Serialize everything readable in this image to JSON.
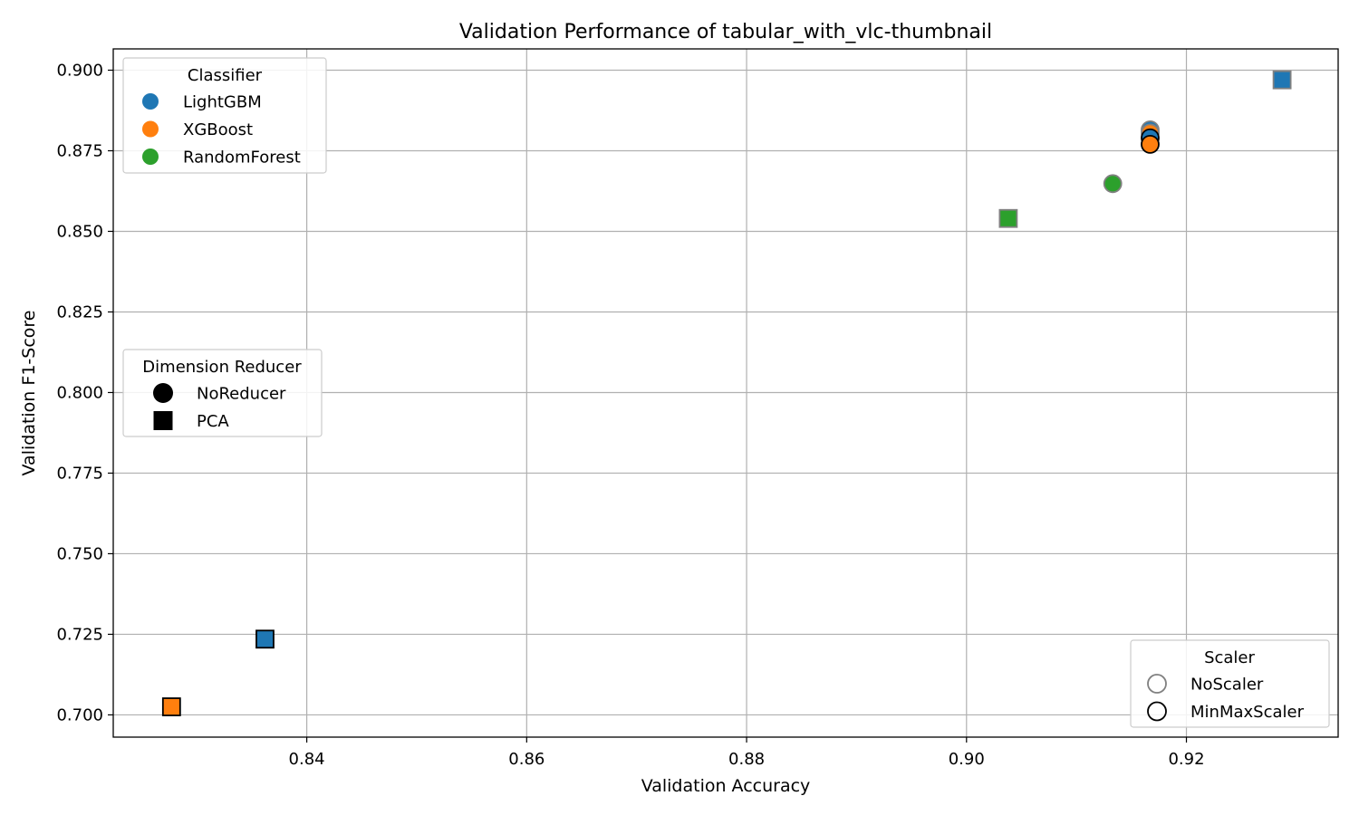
{
  "chart_data": {
    "type": "scatter",
    "title": "Validation Performance of tabular_with_vlc-thumbnail",
    "xlabel": "Validation Accuracy",
    "ylabel": "Validation F1-Score",
    "xlim": [
      0.8224,
      0.9338
    ],
    "ylim": [
      0.6931,
      0.9066
    ],
    "xticks": [
      0.84,
      0.86,
      0.88,
      0.9,
      0.92
    ],
    "xtick_labels": [
      "0.84",
      "0.86",
      "0.88",
      "0.90",
      "0.92"
    ],
    "yticks": [
      0.7,
      0.725,
      0.75,
      0.775,
      0.8,
      0.825,
      0.85,
      0.875,
      0.9
    ],
    "ytick_labels": [
      "0.700",
      "0.725",
      "0.750",
      "0.775",
      "0.800",
      "0.825",
      "0.850",
      "0.875",
      "0.900"
    ],
    "grid": true,
    "colors": {
      "LightGBM": "#1f77b4",
      "XGBoost": "#ff7f0e",
      "RandomForest": "#2ca02c"
    },
    "scaler_edge_colors": {
      "NoScaler": "#808080",
      "MinMaxScaler": "#000000"
    },
    "points": [
      {
        "x": 0.9287,
        "y": 0.897,
        "classifier": "LightGBM",
        "reducer": "PCA",
        "scaler": "NoScaler"
      },
      {
        "x": 0.9038,
        "y": 0.854,
        "classifier": "RandomForest",
        "reducer": "PCA",
        "scaler": "NoScaler"
      },
      {
        "x": 0.9133,
        "y": 0.8648,
        "classifier": "RandomForest",
        "reducer": "NoReducer",
        "scaler": "NoScaler"
      },
      {
        "x": 0.9167,
        "y": 0.8815,
        "classifier": "LightGBM",
        "reducer": "NoReducer",
        "scaler": "NoScaler"
      },
      {
        "x": 0.9167,
        "y": 0.8805,
        "classifier": "XGBoost",
        "reducer": "NoReducer",
        "scaler": "NoScaler"
      },
      {
        "x": 0.9167,
        "y": 0.879,
        "classifier": "LightGBM",
        "reducer": "NoReducer",
        "scaler": "MinMaxScaler"
      },
      {
        "x": 0.9167,
        "y": 0.877,
        "classifier": "XGBoost",
        "reducer": "NoReducer",
        "scaler": "MinMaxScaler"
      },
      {
        "x": 0.8362,
        "y": 0.7235,
        "classifier": "LightGBM",
        "reducer": "PCA",
        "scaler": "MinMaxScaler"
      },
      {
        "x": 0.8277,
        "y": 0.7025,
        "classifier": "XGBoost",
        "reducer": "PCA",
        "scaler": "MinMaxScaler"
      }
    ],
    "legends": [
      {
        "title": "Classifier",
        "placement": "top-left",
        "entries": [
          {
            "label": "LightGBM",
            "marker": "circle",
            "color": "#1f77b4"
          },
          {
            "label": "XGBoost",
            "marker": "circle",
            "color": "#ff7f0e"
          },
          {
            "label": "RandomForest",
            "marker": "circle",
            "color": "#2ca02c"
          }
        ]
      },
      {
        "title": "Dimension Reducer",
        "placement": "center-left",
        "entries": [
          {
            "label": "NoReducer",
            "marker": "circle",
            "color": "#000000"
          },
          {
            "label": "PCA",
            "marker": "square",
            "color": "#000000"
          }
        ]
      },
      {
        "title": "Scaler",
        "placement": "bottom-right",
        "entries": [
          {
            "label": "NoScaler",
            "marker": "circle-outline",
            "color": "#808080"
          },
          {
            "label": "MinMaxScaler",
            "marker": "circle-outline",
            "color": "#000000"
          }
        ]
      }
    ]
  }
}
